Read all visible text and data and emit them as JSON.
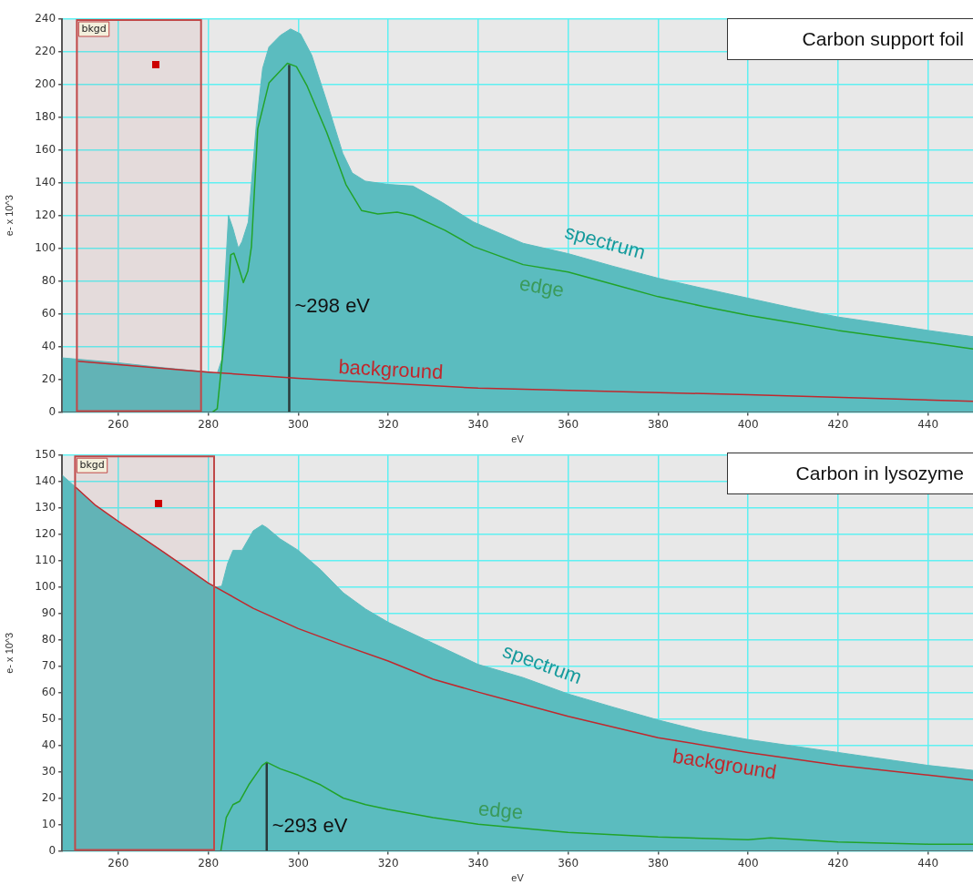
{
  "chart_data": [
    {
      "type": "area",
      "title": "Carbon support foil",
      "xlabel": "eV",
      "ylabel": "e- x 10^3",
      "xlim": [
        247.5,
        450
      ],
      "ylim": [
        0,
        240
      ],
      "xticks": [
        260,
        280,
        300,
        320,
        340,
        360,
        380,
        400,
        420,
        440
      ],
      "yticks": [
        0,
        20,
        40,
        60,
        80,
        100,
        120,
        140,
        160,
        180,
        200,
        220,
        240
      ],
      "grid": true,
      "series": [
        {
          "name": "spectrum",
          "color": "#5bbcbf",
          "x": [
            247.6,
            260,
            270,
            280,
            282,
            283,
            283.4,
            284.5,
            285.5,
            286.7,
            287.5,
            288.9,
            290.7,
            292.1,
            293.5,
            296,
            298.3,
            300.5,
            303,
            306.3,
            309.9,
            312,
            314.9,
            320,
            325.5,
            332,
            339,
            350,
            360,
            370,
            380,
            390,
            400,
            410,
            420,
            430,
            440,
            450
          ],
          "values": [
            33,
            30,
            27,
            24.4,
            23.5,
            32,
            64,
            120,
            112,
            100,
            104,
            116,
            176,
            210,
            223,
            230,
            234,
            231,
            218,
            190,
            158,
            146,
            141,
            139,
            138,
            128,
            116,
            103,
            96.7,
            89,
            81.7,
            75.5,
            69.5,
            63.5,
            58,
            54,
            49.8,
            46
          ]
        },
        {
          "name": "edge",
          "type": "line",
          "color": "#22a32a",
          "x": [
            281,
            282,
            283.9,
            285,
            285.7,
            286.8,
            287.8,
            288.8,
            289.6,
            291,
            293.5,
            297.6,
            299.6,
            302,
            306.3,
            310.6,
            314.1,
            317.7,
            322,
            325.5,
            332.6,
            339,
            350,
            360,
            370,
            380,
            390,
            400,
            410,
            420,
            430,
            440,
            450
          ],
          "values": [
            0,
            2,
            54,
            96,
            97,
            88,
            79,
            86,
            101,
            173,
            201,
            213,
            211,
            199,
            171,
            139,
            123,
            121,
            122,
            120,
            111,
            101,
            90,
            85.5,
            78,
            70.4,
            64.5,
            59,
            54.5,
            49.8,
            46,
            42.3,
            38.5
          ]
        },
        {
          "name": "background",
          "type": "line",
          "color": "#c0282d",
          "x": [
            251,
            280,
            300,
            340,
            400,
            450
          ],
          "values": [
            31,
            24.3,
            20.5,
            14.5,
            10.5,
            6.5
          ]
        },
        {
          "type": "line",
          "color": "#2a3a3a",
          "x": [
            298,
            298
          ],
          "values": [
            0,
            212
          ]
        }
      ],
      "bands": [
        {
          "axis": "x",
          "from": 250.8,
          "to": 278.4,
          "label": "bkgd",
          "color": "#c04848"
        }
      ],
      "annotations": [
        {
          "text": "~298 eV",
          "x": 298,
          "y": 64
        }
      ]
    },
    {
      "type": "area",
      "title": "Carbon in lysozyme",
      "xlabel": "eV",
      "ylabel": "e- x 10^3",
      "xlim": [
        247.5,
        450
      ],
      "ylim": [
        0,
        150
      ],
      "xticks": [
        260,
        280,
        300,
        320,
        340,
        360,
        380,
        400,
        420,
        440
      ],
      "yticks": [
        0,
        10,
        20,
        30,
        40,
        50,
        60,
        70,
        80,
        90,
        100,
        110,
        120,
        130,
        140,
        150
      ],
      "grid": true,
      "series": [
        {
          "name": "spectrum",
          "color": "#5bbcbf",
          "x": [
            247.6,
            250.5,
            255,
            260,
            270,
            280,
            281.5,
            283,
            284.3,
            285.5,
            287.5,
            290,
            292,
            293,
            296,
            300,
            305,
            310,
            315,
            320,
            330,
            340,
            350,
            360,
            370,
            380,
            390,
            400,
            420,
            440,
            450
          ],
          "values": [
            142.4,
            138,
            131,
            124.5,
            113.4,
            101.6,
            100,
            100.4,
            109,
            114,
            114,
            121.4,
            123.6,
            122.6,
            118.3,
            114,
            106.6,
            97.9,
            91.7,
            86.7,
            78.7,
            70.7,
            65.7,
            59.5,
            54.5,
            49.6,
            45.3,
            42.2,
            37.3,
            32.4,
            30.5
          ]
        },
        {
          "name": "edge",
          "type": "line",
          "color": "#22a32a",
          "x": [
            282.8,
            284,
            285.5,
            287,
            289,
            292,
            293,
            296,
            300,
            305,
            310,
            315,
            320,
            330,
            340,
            360,
            380,
            400,
            405,
            420,
            440,
            450
          ],
          "values": [
            0,
            12.6,
            17.5,
            18.8,
            25,
            32.4,
            33.6,
            31.1,
            28.7,
            25,
            20,
            17.5,
            15.7,
            12.6,
            10.1,
            7,
            5.2,
            4.2,
            4.9,
            3.3,
            2.5,
            2.5
          ]
        },
        {
          "name": "background",
          "type": "line",
          "color": "#c0282d",
          "x": [
            250.5,
            255,
            260,
            270,
            280,
            290,
            300,
            310,
            320,
            330,
            340,
            360,
            380,
            400,
            420,
            440,
            450
          ],
          "values": [
            138,
            131,
            125,
            113.4,
            101.6,
            92,
            84.3,
            78,
            72,
            65.1,
            60.2,
            51,
            42.9,
            37.3,
            32.4,
            28.7,
            26.8
          ]
        },
        {
          "type": "line",
          "color": "#2a3a3a",
          "x": [
            293,
            293
          ],
          "values": [
            0,
            33.6
          ]
        }
      ],
      "bands": [
        {
          "axis": "x",
          "from": 250.4,
          "to": 281.3,
          "label": "bkgd",
          "color": "#c04848"
        }
      ],
      "annotations": [
        {
          "text": "~293 eV",
          "x": 293,
          "y": 9
        }
      ]
    }
  ]
}
